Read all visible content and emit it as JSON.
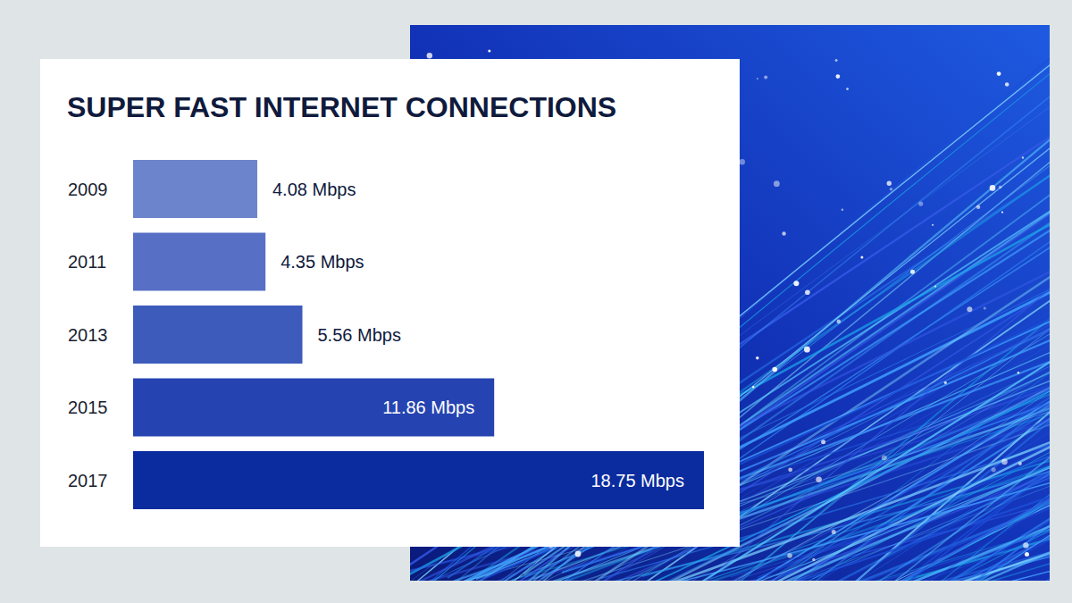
{
  "chart_data": {
    "type": "bar",
    "title": "SUPER FAST INTERNET CONNECTIONS",
    "orientation": "horizontal",
    "categories": [
      "2009",
      "2011",
      "2013",
      "2015",
      "2017"
    ],
    "values": [
      4.08,
      4.35,
      5.56,
      11.86,
      18.75
    ],
    "value_labels": [
      "4.08 Mbps",
      "4.35 Mbps",
      "5.56 Mbps",
      "11.86 Mbps",
      "18.75 Mbps"
    ],
    "colors": [
      "#6c84cc",
      "#5770c6",
      "#3c5bbb",
      "#2544b1",
      "#0a2c9f"
    ],
    "data_labels": true,
    "grid": false,
    "tick_labels": "y"
  }
}
